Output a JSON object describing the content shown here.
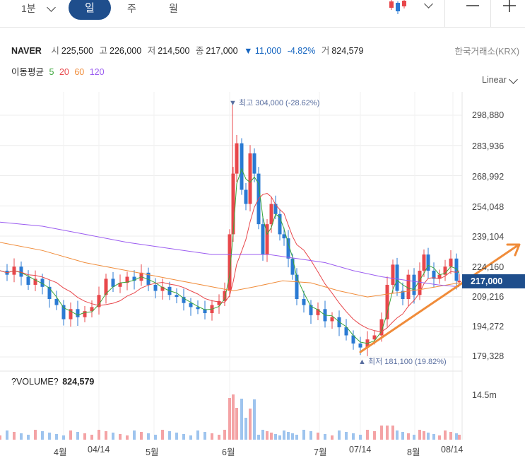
{
  "toolbar": {
    "interval": "1분",
    "periods": [
      "일",
      "주",
      "월"
    ],
    "active_period": "일"
  },
  "stock": {
    "name": "NAVER",
    "open_label": "시",
    "open": "225,500",
    "high_label": "고",
    "high": "226,000",
    "low_label": "저",
    "low": "214,500",
    "close_label": "종",
    "close": "217,000",
    "change": "▼ 11,000",
    "change_pct": "-4.82%",
    "volume_label": "거",
    "volume": "824,579",
    "exchange": "한국거래소(KRX)"
  },
  "moving_average": {
    "label": "이동평균",
    "periods": [
      {
        "value": "5",
        "color": "#3aa53a"
      },
      {
        "value": "20",
        "color": "#e8474b"
      },
      {
        "value": "60",
        "color": "#f08c3a"
      },
      {
        "value": "120",
        "color": "#9b5cf0"
      }
    ]
  },
  "scale_mode": "Linear",
  "annotations": {
    "high": "▼ 최고 304,000 (-28.62%)",
    "low": "▲ 최저 181,100 (19.82%)"
  },
  "current_price_tag": "217,000",
  "volume_panel": {
    "title": "?VOLUME?",
    "value": "824,579",
    "scale": "14.5m"
  },
  "chart_data": {
    "type": "candlestick",
    "y_ticks": [
      "298,880",
      "283,936",
      "268,992",
      "254,048",
      "239,104",
      "224,160",
      "209,216",
      "194,272",
      "179,328"
    ],
    "x_ticks": [
      "4월",
      "04/14",
      "5월",
      "6월",
      "7월",
      "07/14",
      "8월",
      "08/14"
    ],
    "ylim": [
      179328,
      298880
    ],
    "colors": {
      "up": "#e8474b",
      "down": "#2a7ad3",
      "trend": "#f08c3a",
      "grid": "#ececec"
    }
  }
}
